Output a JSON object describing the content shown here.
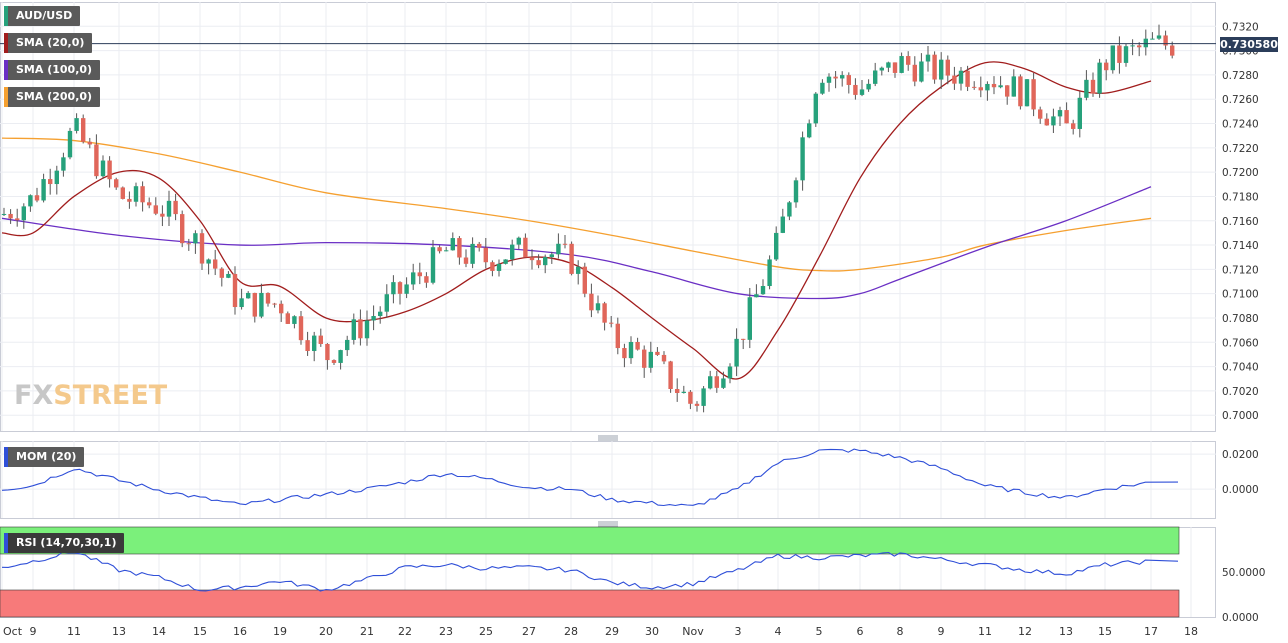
{
  "legend": {
    "symbol": "AUD/USD",
    "sma20": "SMA (20,0)",
    "sma100": "SMA (100,0)",
    "sma200": "SMA (200,0)",
    "mom": "MOM (20)",
    "rsi": "RSI (14,70,30,1)"
  },
  "colors": {
    "up": "#26a17b",
    "down": "#e0665a",
    "sma20": "#a11d1d",
    "sma100": "#6a2fc4",
    "sma200": "#f5a030",
    "mom": "#2f4fd8",
    "rsi": "#2f4fd8",
    "rsi_overbought_zone": "#7bf07b",
    "rsi_oversold_zone": "#f77a7a",
    "last_price_tag": "#2b3d5a"
  },
  "watermark": {
    "part1": "FX",
    "part2": "STREET"
  },
  "last_price": "0.730580",
  "chart_data": [
    {
      "type": "candlestick",
      "xlabel": "",
      "ylabel": "",
      "x_ticks": [
        "Oct",
        "9",
        "11",
        "13",
        "14",
        "15",
        "16",
        "19",
        "20",
        "21",
        "22",
        "23",
        "25",
        "27",
        "28",
        "29",
        "30",
        "Nov",
        "3",
        "4",
        "5",
        "6",
        "8",
        "9",
        "11",
        "12",
        "13",
        "15",
        "17",
        "18"
      ],
      "y_ticks": [
        "0.7000",
        "0.7020",
        "0.7040",
        "0.7060",
        "0.7080",
        "0.7100",
        "0.7120",
        "0.7140",
        "0.7160",
        "0.7180",
        "0.7200",
        "0.7220",
        "0.7240",
        "0.7260",
        "0.7280",
        "0.7300",
        "0.7320"
      ],
      "ylim": [
        0.6987,
        0.734
      ],
      "last_price": 0.73058,
      "close_points": [
        {
          "x": "Oct",
          "y": 0.7165
        },
        {
          "x": "9",
          "y": 0.7178
        },
        {
          "x": "11",
          "y": 0.7235
        },
        {
          "x": "13",
          "y": 0.718
        },
        {
          "x": "14",
          "y": 0.7172
        },
        {
          "x": "15",
          "y": 0.714
        },
        {
          "x": "16",
          "y": 0.7092
        },
        {
          "x": "19",
          "y": 0.7092
        },
        {
          "x": "20",
          "y": 0.7048
        },
        {
          "x": "21",
          "y": 0.7078
        },
        {
          "x": "22",
          "y": 0.7105
        },
        {
          "x": "23",
          "y": 0.7135
        },
        {
          "x": "25",
          "y": 0.7128
        },
        {
          "x": "27",
          "y": 0.7138
        },
        {
          "x": "28",
          "y": 0.7128
        },
        {
          "x": "29",
          "y": 0.7062
        },
        {
          "x": "30",
          "y": 0.7045
        },
        {
          "x": "Nov",
          "y": 0.7008
        },
        {
          "x": "3",
          "y": 0.706
        },
        {
          "x": "4",
          "y": 0.7142
        },
        {
          "x": "5",
          "y": 0.7285
        },
        {
          "x": "6",
          "y": 0.7268
        },
        {
          "x": "8",
          "y": 0.729
        },
        {
          "x": "9",
          "y": 0.7282
        },
        {
          "x": "11",
          "y": 0.728
        },
        {
          "x": "12",
          "y": 0.7265
        },
        {
          "x": "13",
          "y": 0.7235
        },
        {
          "x": "15",
          "y": 0.729
        },
        {
          "x": "17",
          "y": 0.7305
        }
      ],
      "sma20_points": [
        {
          "x": "Oct",
          "y": 0.715
        },
        {
          "x": "9",
          "y": 0.715
        },
        {
          "x": "11",
          "y": 0.718
        },
        {
          "x": "13",
          "y": 0.72
        },
        {
          "x": "14",
          "y": 0.7195
        },
        {
          "x": "15",
          "y": 0.716
        },
        {
          "x": "16",
          "y": 0.711
        },
        {
          "x": "19",
          "y": 0.7106
        },
        {
          "x": "20",
          "y": 0.708
        },
        {
          "x": "21",
          "y": 0.7078
        },
        {
          "x": "22",
          "y": 0.7085
        },
        {
          "x": "23",
          "y": 0.71
        },
        {
          "x": "25",
          "y": 0.712
        },
        {
          "x": "27",
          "y": 0.713
        },
        {
          "x": "28",
          "y": 0.7125
        },
        {
          "x": "29",
          "y": 0.7105
        },
        {
          "x": "30",
          "y": 0.708
        },
        {
          "x": "Nov",
          "y": 0.7055
        },
        {
          "x": "3",
          "y": 0.703
        },
        {
          "x": "4",
          "y": 0.707
        },
        {
          "x": "5",
          "y": 0.713
        },
        {
          "x": "6",
          "y": 0.7195
        },
        {
          "x": "8",
          "y": 0.724
        },
        {
          "x": "9",
          "y": 0.727
        },
        {
          "x": "11",
          "y": 0.729
        },
        {
          "x": "12",
          "y": 0.7285
        },
        {
          "x": "13",
          "y": 0.727
        },
        {
          "x": "15",
          "y": 0.7265
        },
        {
          "x": "17",
          "y": 0.7275
        }
      ],
      "sma100_points": [
        {
          "x": "Oct",
          "y": 0.7162
        },
        {
          "x": "13",
          "y": 0.7148
        },
        {
          "x": "16",
          "y": 0.714
        },
        {
          "x": "20",
          "y": 0.7142
        },
        {
          "x": "23",
          "y": 0.714
        },
        {
          "x": "28",
          "y": 0.7132
        },
        {
          "x": "30",
          "y": 0.7118
        },
        {
          "x": "3",
          "y": 0.71
        },
        {
          "x": "5",
          "y": 0.7096
        },
        {
          "x": "6",
          "y": 0.71
        },
        {
          "x": "8",
          "y": 0.7112
        },
        {
          "x": "11",
          "y": 0.7138
        },
        {
          "x": "13",
          "y": 0.716
        },
        {
          "x": "17",
          "y": 0.7188
        }
      ],
      "sma200_points": [
        {
          "x": "Oct",
          "y": 0.7228
        },
        {
          "x": "11",
          "y": 0.7226
        },
        {
          "x": "14",
          "y": 0.7215
        },
        {
          "x": "16",
          "y": 0.72
        },
        {
          "x": "20",
          "y": 0.7183
        },
        {
          "x": "23",
          "y": 0.717
        },
        {
          "x": "27",
          "y": 0.716
        },
        {
          "x": "29",
          "y": 0.7148
        },
        {
          "x": "Nov",
          "y": 0.7135
        },
        {
          "x": "4",
          "y": 0.7122
        },
        {
          "x": "5",
          "y": 0.7119
        },
        {
          "x": "6",
          "y": 0.712
        },
        {
          "x": "9",
          "y": 0.713
        },
        {
          "x": "11",
          "y": 0.714
        },
        {
          "x": "13",
          "y": 0.7152
        },
        {
          "x": "17",
          "y": 0.7162
        }
      ]
    },
    {
      "type": "line",
      "name": "MOM (20)",
      "y_ticks": [
        "0.0200",
        "0.0000"
      ],
      "ylim": [
        -0.0165,
        0.0275
      ],
      "points": [
        {
          "x": "Oct",
          "y": 0.0
        },
        {
          "x": "9",
          "y": 0.002
        },
        {
          "x": "11",
          "y": 0.012
        },
        {
          "x": "13",
          "y": 0.005
        },
        {
          "x": "14",
          "y": -0.0005
        },
        {
          "x": "15",
          "y": -0.005
        },
        {
          "x": "16",
          "y": -0.009
        },
        {
          "x": "19",
          "y": -0.006
        },
        {
          "x": "20",
          "y": -0.003
        },
        {
          "x": "21",
          "y": 0.0
        },
        {
          "x": "22",
          "y": 0.004
        },
        {
          "x": "23",
          "y": 0.009
        },
        {
          "x": "25",
          "y": 0.006
        },
        {
          "x": "27",
          "y": 0.001
        },
        {
          "x": "28",
          "y": 0.0
        },
        {
          "x": "29",
          "y": -0.006
        },
        {
          "x": "30",
          "y": -0.008
        },
        {
          "x": "Nov",
          "y": -0.01
        },
        {
          "x": "3",
          "y": 0.0
        },
        {
          "x": "4",
          "y": 0.015
        },
        {
          "x": "5",
          "y": 0.022
        },
        {
          "x": "6",
          "y": 0.022
        },
        {
          "x": "8",
          "y": 0.018
        },
        {
          "x": "9",
          "y": 0.012
        },
        {
          "x": "11",
          "y": 0.002
        },
        {
          "x": "12",
          "y": -0.002
        },
        {
          "x": "13",
          "y": -0.005
        },
        {
          "x": "15",
          "y": 0.0
        },
        {
          "x": "17",
          "y": 0.004
        }
      ]
    },
    {
      "type": "line",
      "name": "RSI (14,70,30,1)",
      "y_ticks": [
        "50.0000",
        "0.0000"
      ],
      "ylim": [
        0,
        100
      ],
      "overbought": 70,
      "oversold": 30,
      "points": [
        {
          "x": "Oct",
          "y": 55
        },
        {
          "x": "9",
          "y": 62
        },
        {
          "x": "11",
          "y": 73
        },
        {
          "x": "13",
          "y": 52
        },
        {
          "x": "14",
          "y": 44
        },
        {
          "x": "15",
          "y": 30
        },
        {
          "x": "16",
          "y": 33
        },
        {
          "x": "19",
          "y": 40
        },
        {
          "x": "20",
          "y": 30
        },
        {
          "x": "21",
          "y": 42
        },
        {
          "x": "22",
          "y": 55
        },
        {
          "x": "23",
          "y": 58
        },
        {
          "x": "25",
          "y": 54
        },
        {
          "x": "27",
          "y": 55
        },
        {
          "x": "28",
          "y": 52
        },
        {
          "x": "29",
          "y": 38
        },
        {
          "x": "30",
          "y": 33
        },
        {
          "x": "Nov",
          "y": 37
        },
        {
          "x": "3",
          "y": 52
        },
        {
          "x": "4",
          "y": 68
        },
        {
          "x": "5",
          "y": 66
        },
        {
          "x": "6",
          "y": 68
        },
        {
          "x": "8",
          "y": 70
        },
        {
          "x": "9",
          "y": 64
        },
        {
          "x": "11",
          "y": 58
        },
        {
          "x": "12",
          "y": 52
        },
        {
          "x": "13",
          "y": 48
        },
        {
          "x": "15",
          "y": 58
        },
        {
          "x": "17",
          "y": 62
        }
      ]
    }
  ]
}
